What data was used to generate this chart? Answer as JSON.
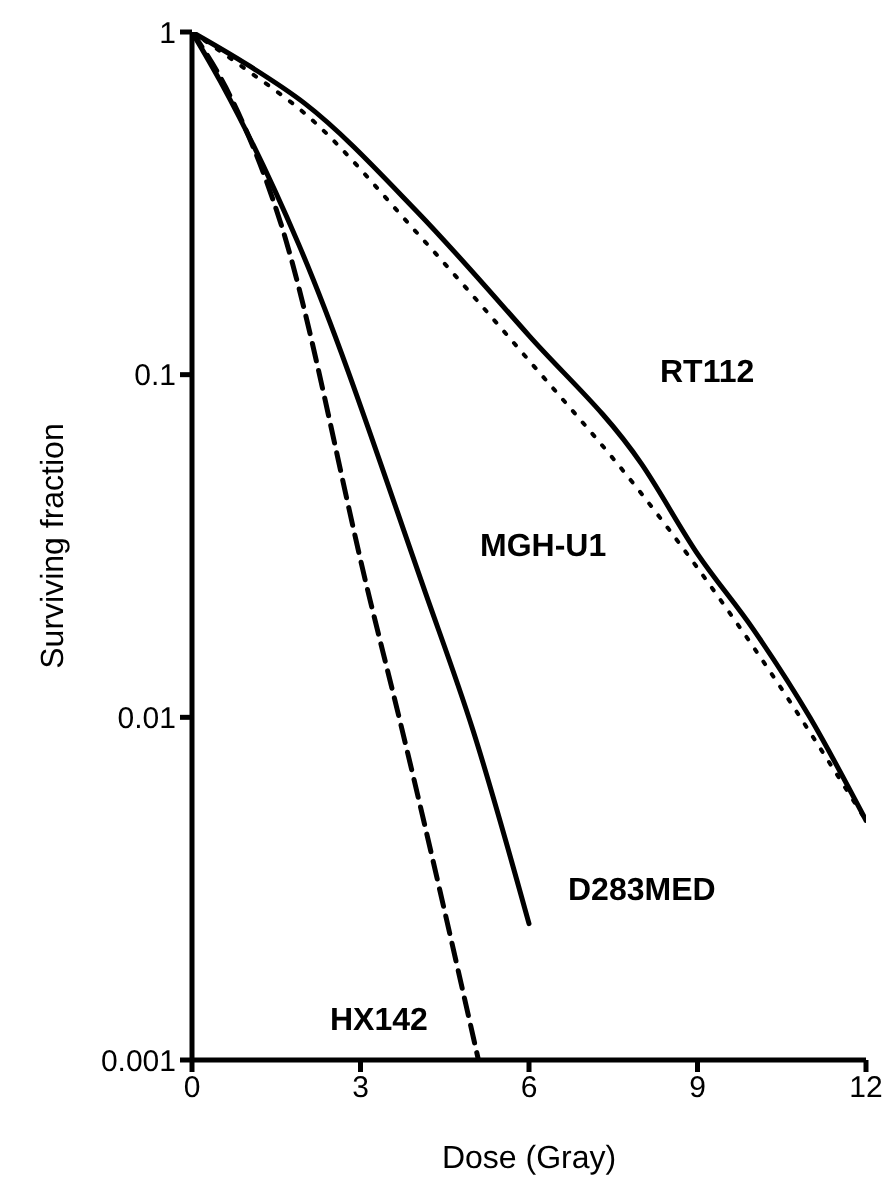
{
  "chart_data": {
    "type": "line",
    "xlabel": "Dose (Gray)",
    "ylabel": "Surviving fraction",
    "log": "y",
    "xlim": [
      0,
      12
    ],
    "xticks": [
      0,
      3,
      6,
      9,
      12
    ],
    "ylim": [
      0.001,
      1
    ],
    "yticks": [
      0.001,
      0.01,
      0.1,
      1
    ],
    "grid": false,
    "legend": false,
    "marker": "none",
    "series": [
      {
        "name": "RT112",
        "color": "#000000",
        "line_style": "solid",
        "x": [
          0,
          1,
          2,
          4,
          6,
          8,
          9,
          10,
          11,
          12
        ],
        "values": [
          1,
          0.8,
          0.62,
          0.3,
          0.13,
          0.055,
          0.03,
          0.018,
          0.01,
          0.005
        ]
      },
      {
        "color": "#000000",
        "line_style": "dotted",
        "x": [
          0,
          1,
          2,
          4,
          6,
          8,
          10,
          12
        ],
        "values": [
          1,
          0.77,
          0.58,
          0.26,
          0.11,
          0.045,
          0.016,
          0.005
        ]
      },
      {
        "name": "D283MED",
        "color": "#000000",
        "line_style": "solid",
        "x": [
          0,
          0.5,
          1.9,
          4.16,
          5,
          6
        ],
        "values": [
          1,
          0.72,
          0.24,
          0.023,
          0.0092,
          0.0025
        ]
      },
      {
        "name": "HX142",
        "color": "#000000",
        "line_style": "dashed",
        "x": [
          0,
          0.6,
          1.57,
          3.17,
          3.7,
          5.1
        ],
        "values": [
          1,
          0.69,
          0.28,
          0.022,
          0.0098,
          0.001
        ]
      }
    ],
    "annotations": [
      "MGH-U1"
    ]
  }
}
